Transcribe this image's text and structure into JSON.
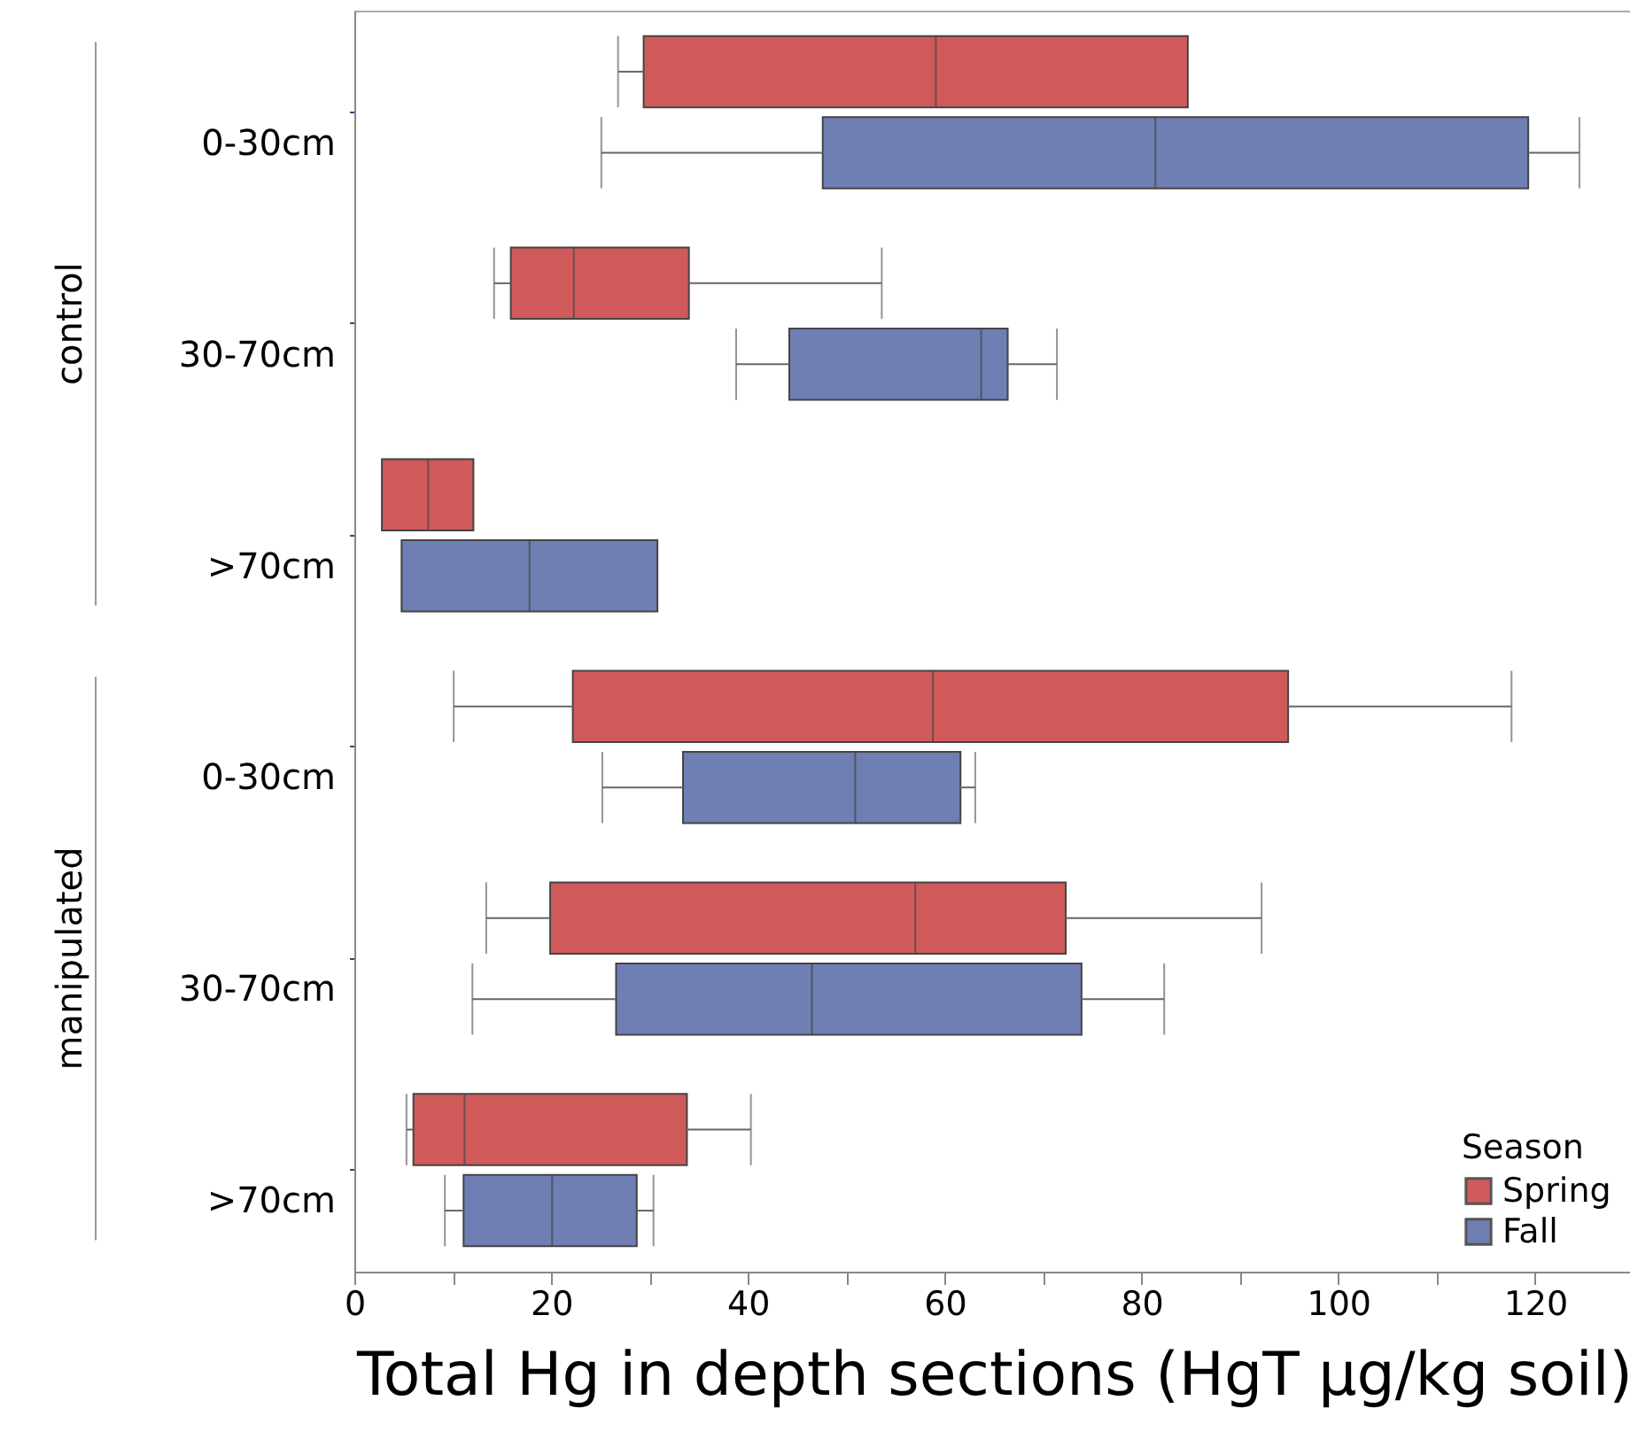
{
  "chart_data": {
    "type": "box",
    "orientation": "horizontal",
    "categories": [
      "0-30cm",
      "30-70cm",
      ">70cm",
      "0-30cm",
      "30-70cm",
      ">70cm"
    ],
    "annotations": [
      "control",
      "manipulated"
    ],
    "xlabel": "Total Hg in depth sections (HgT μg/kg soil)",
    "legend_title": "Season",
    "legend": "bottom right",
    "grid": false,
    "xlim": [
      0,
      130
    ],
    "xticks": [
      0,
      {
        "value": 10,
        "label": null
      },
      20,
      {
        "value": 30,
        "label": null
      },
      40,
      {
        "value": 50,
        "label": null
      },
      60,
      {
        "value": 70,
        "label": null
      },
      80,
      {
        "value": 90,
        "label": null
      },
      100,
      {
        "value": 110,
        "label": null
      },
      120,
      {
        "value": 130,
        "label": null
      }
    ],
    "series": [
      {
        "name": "Spring",
        "color": "#d05a5a",
        "boxes": [
          {
            "low": 26.8,
            "q1": 29.4,
            "median": 59.1,
            "q3": 84.7,
            "high": 84.7
          },
          {
            "low": 14.2,
            "q1": 15.9,
            "median": 22.3,
            "q3": 34.0,
            "high": 53.6
          },
          {
            "low": 2.8,
            "q1": 2.8,
            "median": 7.5,
            "q3": 12.1,
            "high": 12.1
          },
          {
            "low": 10.1,
            "q1": 22.2,
            "median": 58.8,
            "q3": 94.9,
            "high": 117.6
          },
          {
            "low": 13.4,
            "q1": 19.9,
            "median": 57.0,
            "q3": 72.3,
            "high": 92.2
          },
          {
            "low": 5.3,
            "q1": 6.0,
            "median": 11.2,
            "q3": 33.8,
            "high": 40.3
          }
        ]
      },
      {
        "name": "Fall",
        "color": "#6f7eb3",
        "boxes": [
          {
            "low": 25.1,
            "q1": 47.6,
            "median": 81.4,
            "q3": 119.3,
            "high": 124.5
          },
          {
            "low": 38.8,
            "q1": 44.2,
            "median": 63.7,
            "q3": 66.4,
            "high": 71.4
          },
          {
            "low": 4.8,
            "q1": 4.8,
            "median": 17.8,
            "q3": 30.8,
            "high": 30.8
          },
          {
            "low": 25.2,
            "q1": 33.4,
            "median": 50.9,
            "q3": 61.6,
            "high": 63.1
          },
          {
            "low": 12.0,
            "q1": 26.6,
            "median": 46.5,
            "q3": 73.9,
            "high": 82.3
          },
          {
            "low": 9.2,
            "q1": 11.1,
            "median": 20.1,
            "q3": 28.7,
            "high": 30.4
          }
        ]
      }
    ]
  }
}
